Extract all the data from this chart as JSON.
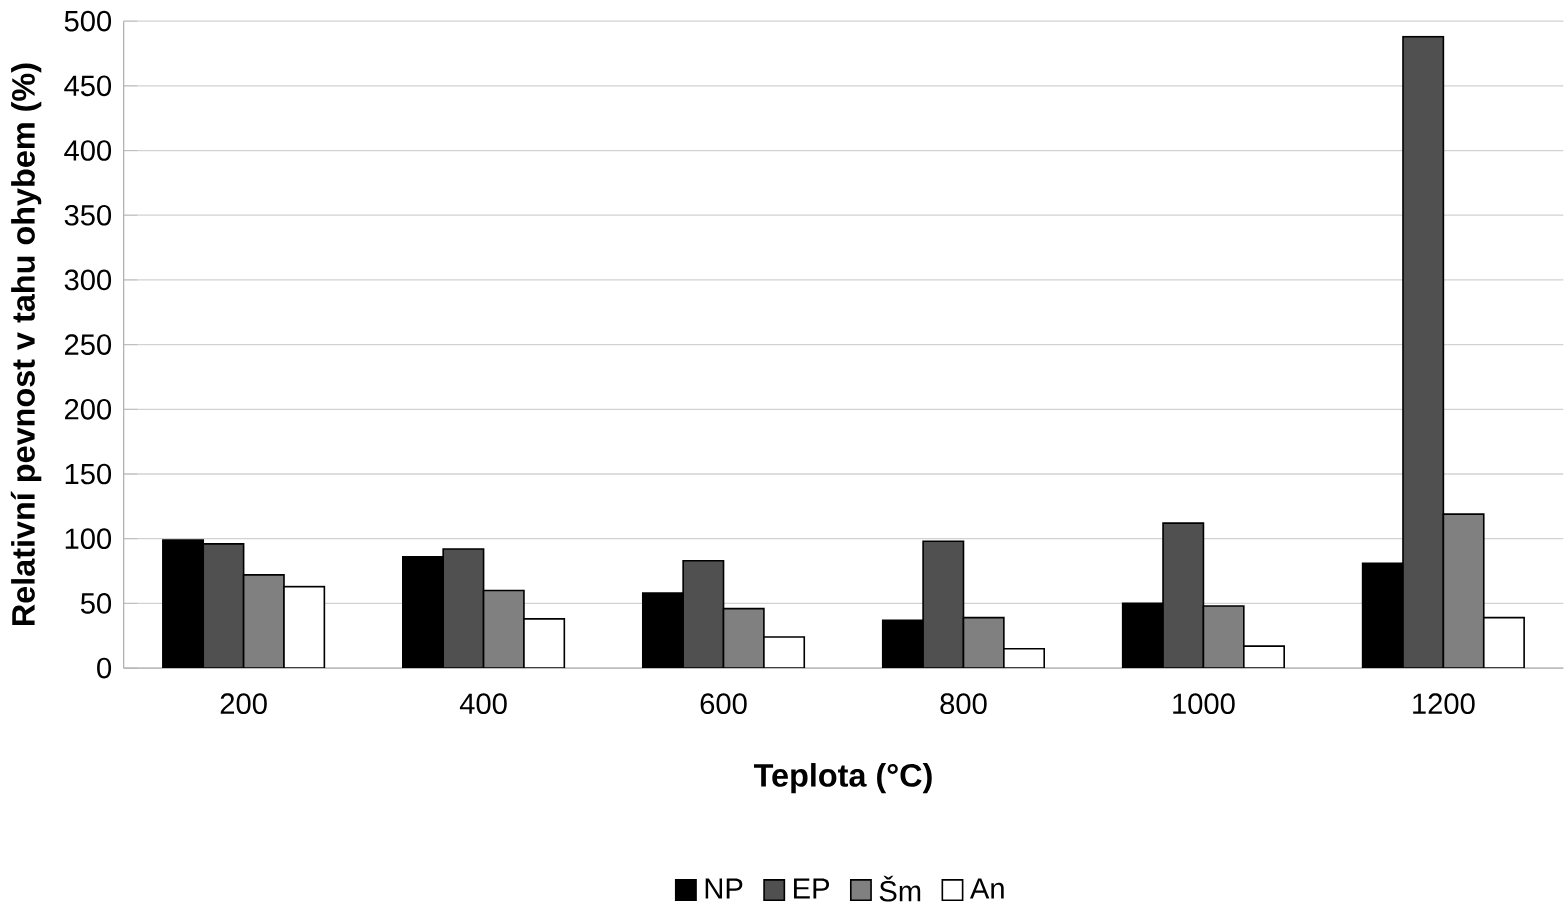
{
  "chart_data": {
    "type": "bar",
    "xlabel": "Teplota (°C)",
    "ylabel": "Relativní pevnost v tahu ohybem (%)",
    "categories": [
      "200",
      "400",
      "600",
      "800",
      "1000",
      "1200"
    ],
    "series": [
      {
        "name": "NP",
        "color": "#000000",
        "values": [
          99,
          86,
          58,
          37,
          50,
          81
        ]
      },
      {
        "name": "EP",
        "color": "#505050",
        "values": [
          96,
          92,
          83,
          98,
          112,
          488
        ]
      },
      {
        "name": "Šm",
        "color": "#808080",
        "values": [
          72,
          60,
          46,
          39,
          48,
          119
        ]
      },
      {
        "name": "An",
        "color": "#ffffff",
        "values": [
          63,
          38,
          24,
          15,
          17,
          39
        ]
      }
    ],
    "ylim": [
      0,
      500
    ],
    "yticks": [
      0,
      50,
      100,
      150,
      200,
      250,
      300,
      350,
      400,
      450,
      500
    ],
    "grid": "y",
    "legend": "bottom"
  }
}
